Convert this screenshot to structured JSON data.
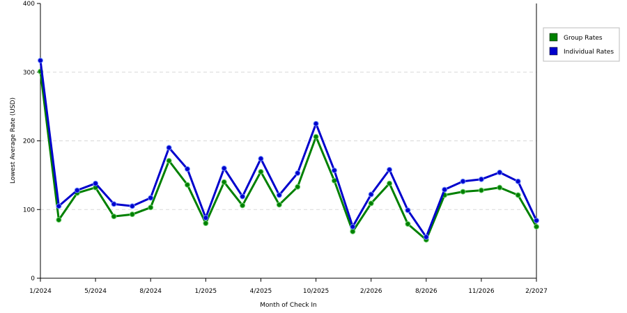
{
  "chart_data": {
    "type": "line",
    "xlabel": "Month of Check In",
    "ylabel": "Lowest Average Rate (USD)",
    "ylim": [
      0,
      400
    ],
    "y_ticks": [
      "0",
      "100",
      "200",
      "300",
      "400"
    ],
    "x_tick_labels": [
      "1/2024",
      "5/2024",
      "8/2024",
      "1/2025",
      "4/2025",
      "10/2025",
      "2/2026",
      "8/2026",
      "11/2026",
      "2/2027"
    ],
    "grid": "horizontal dashed",
    "legend_position": "right",
    "series": [
      {
        "name": "Group Rates",
        "color": "#008000",
        "values": [
          301,
          85,
          124,
          132,
          90,
          93,
          103,
          171,
          136,
          80,
          140,
          106,
          155,
          107,
          133,
          206,
          142,
          68,
          109,
          138,
          79,
          56,
          121,
          126,
          128,
          132,
          121,
          75
        ]
      },
      {
        "name": "Individual Rates",
        "color": "#0000cc",
        "values": [
          317,
          105,
          128,
          138,
          108,
          105,
          117,
          190,
          159,
          88,
          160,
          119,
          174,
          121,
          153,
          225,
          157,
          75,
          122,
          158,
          99,
          60,
          129,
          141,
          144,
          154,
          141,
          84
        ]
      }
    ]
  }
}
